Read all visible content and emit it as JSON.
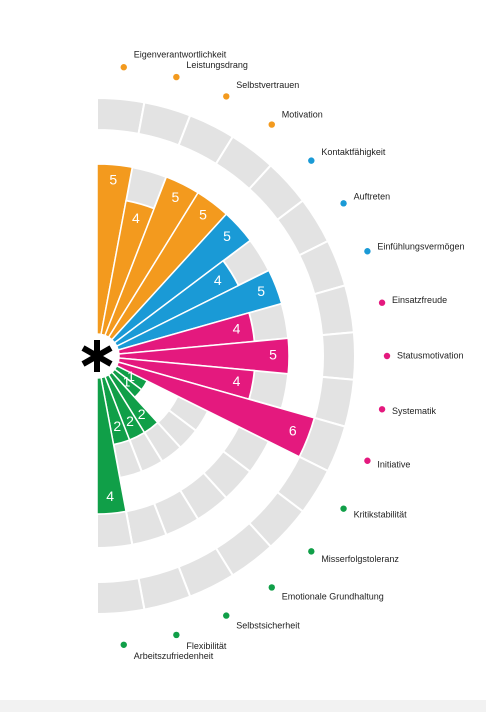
{
  "chart_data": {
    "type": "radial-bar",
    "categories": [
      "Eigenverantwortlichkeit",
      "Leistungsdrang",
      "Selbstvertrauen",
      "Motivation",
      "Kontaktfähigkeit",
      "Auftreten",
      "Einfühlungsvermögen",
      "Einsatzfreude",
      "Statusmotivation",
      "Systematik",
      "Initiative",
      "Kritikstabilität",
      "Misserfolgstoleranz",
      "Emotionale Grundhaltung",
      "Selbstsicherheit",
      "Flexibilität",
      "Arbeitszufriedenheit"
    ],
    "values": [
      5,
      4,
      5,
      5,
      5,
      4,
      5,
      4,
      5,
      4,
      6,
      1,
      1,
      2,
      2,
      2,
      4
    ],
    "colors": [
      "#f39a1e",
      "#f39a1e",
      "#f39a1e",
      "#f39a1e",
      "#1a9ad6",
      "#1a9ad6",
      "#1a9ad6",
      "#e4197e",
      "#e4197e",
      "#e4197e",
      "#e4197e",
      "#109f48",
      "#109f48",
      "#109f48",
      "#109f48",
      "#109f48",
      "#109f48"
    ]
  }
}
